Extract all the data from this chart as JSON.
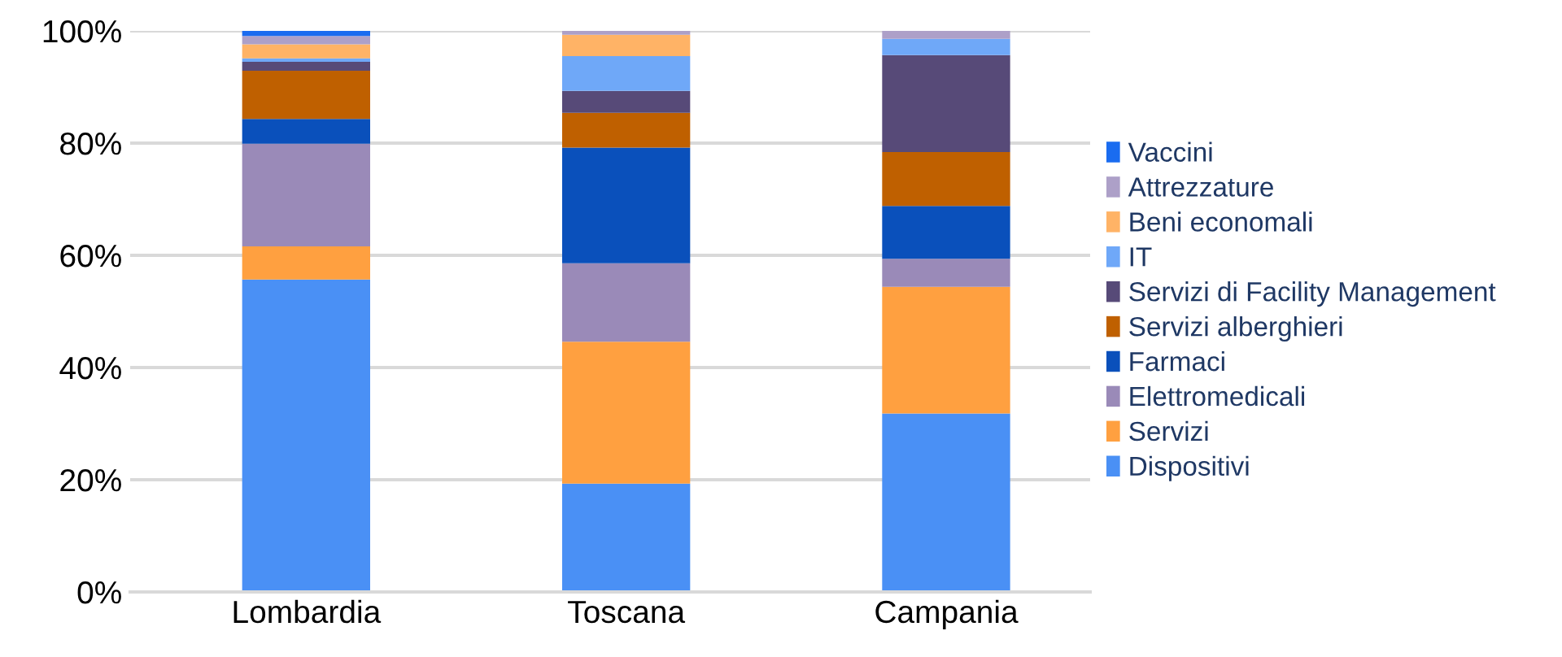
{
  "chart_data": {
    "type": "bar",
    "stacked": true,
    "categories": [
      "Lombardia",
      "Toscana",
      "Campania"
    ],
    "series": [
      {
        "name": "Dispositivi",
        "color": "#4a90f5",
        "values": [
          55.7,
          19.3,
          31.8
        ]
      },
      {
        "name": "Servizi",
        "color": "#ffa040",
        "values": [
          5.9,
          25.3,
          22.6
        ]
      },
      {
        "name": "Elettromedicali",
        "color": "#9a8ab8",
        "values": [
          18.3,
          14.0,
          5.0
        ]
      },
      {
        "name": "Farmaci",
        "color": "#0a50bb",
        "values": [
          4.4,
          20.6,
          9.4
        ]
      },
      {
        "name": "Servizi alberghieri",
        "color": "#bf6000",
        "values": [
          8.6,
          6.2,
          9.6
        ]
      },
      {
        "name": "Servizi di Facility Management",
        "color": "#574a78",
        "values": [
          1.6,
          3.9,
          17.3
        ]
      },
      {
        "name": "IT",
        "color": "#6fa8f8",
        "values": [
          0.6,
          6.2,
          2.9
        ]
      },
      {
        "name": "Beni economali",
        "color": "#ffb366",
        "values": [
          2.5,
          3.8,
          0
        ]
      },
      {
        "name": "Attrezzature",
        "color": "#ada0c8",
        "values": [
          1.5,
          0.7,
          1.4
        ]
      },
      {
        "name": "Vaccini",
        "color": "#1a6cf0",
        "values": [
          0.9,
          0,
          0
        ]
      }
    ],
    "ylim": [
      0,
      100
    ],
    "yticks": [
      {
        "value": 0,
        "label": "0%"
      },
      {
        "value": 20,
        "label": "20%"
      },
      {
        "value": 40,
        "label": "40%"
      },
      {
        "value": 60,
        "label": "60%"
      },
      {
        "value": 80,
        "label": "80%"
      },
      {
        "value": 100,
        "label": "100%"
      }
    ],
    "grid": "y",
    "legend": "right"
  }
}
